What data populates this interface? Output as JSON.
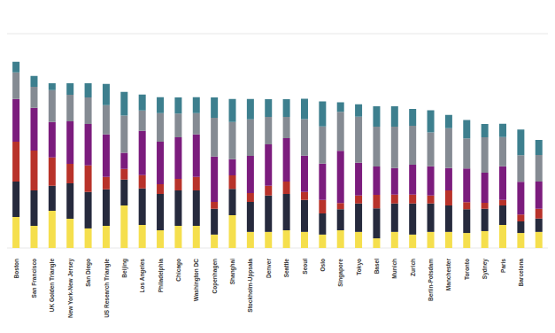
{
  "chart_data": {
    "type": "bar",
    "stacked": true,
    "grid": true,
    "tick_labels": "x",
    "categories": [
      "Boston",
      "San Francisco",
      "UK Golden Triangle",
      "New York-New Jersey",
      "San Diego",
      "US Research Triangle",
      "Beijing",
      "Los Angeles",
      "Philadelphia",
      "Chicago",
      "Washington DC",
      "Copenhagen",
      "Shanghai",
      "Stockholm-Uppsala",
      "Denver",
      "Seattle",
      "Seoul",
      "Oslo",
      "Singapore",
      "Tokyo",
      "Basel",
      "Munich",
      "Zurich",
      "Berlin-Potsdam",
      "Manchester",
      "Toronto",
      "Sydney",
      "Paris",
      "Barcelona",
      null
    ],
    "ylim": [
      0,
      80
    ],
    "yticks": [
      0,
      10,
      20,
      30,
      40,
      50,
      60,
      70,
      80
    ],
    "series": [
      {
        "color": "#f5df4d",
        "values": [
          11.6,
          8.3,
          13.9,
          10.9,
          7.3,
          8.3,
          15.9,
          8.6,
          6.6,
          8.3,
          8.3,
          5.0,
          12.2,
          6.0,
          6.0,
          6.6,
          6.0,
          5.0,
          6.6,
          6.0,
          3.6,
          6.0,
          5.0,
          6.0,
          6.0,
          5.6,
          6.3,
          8.6,
          5.6,
          6.0
        ]
      },
      {
        "color": "#262a3d",
        "values": [
          13.2,
          13.2,
          9.3,
          13.2,
          13.6,
          13.6,
          9.6,
          13.6,
          13.6,
          13.2,
          13.2,
          9.6,
          9.9,
          11.2,
          13.6,
          13.6,
          11.9,
          7.9,
          7.9,
          10.6,
          11.2,
          10.6,
          11.6,
          10.6,
          9.9,
          8.9,
          8.3,
          7.3,
          4.3,
          5.0
        ]
      },
      {
        "color": "#b8322a",
        "values": [
          14.9,
          14.9,
          10.6,
          7.3,
          9.9,
          4.6,
          4.0,
          5.0,
          3.6,
          4.3,
          5.0,
          2.6,
          5.0,
          3.3,
          3.6,
          4.6,
          3.0,
          5.0,
          2.3,
          3.0,
          5.0,
          3.3,
          3.3,
          3.0,
          5.6,
          2.6,
          2.3,
          2.0,
          2.6,
          3.6
        ]
      },
      {
        "color": "#7b1c7d",
        "values": [
          15.9,
          15.9,
          13.2,
          15.9,
          15.5,
          15.9,
          6.0,
          16.5,
          15.9,
          15.5,
          15.9,
          16.9,
          6.0,
          13.9,
          15.5,
          16.2,
          13.6,
          13.6,
          19.5,
          12.2,
          10.6,
          9.9,
          11.2,
          10.9,
          8.3,
          12.6,
          11.2,
          12.6,
          12.2,
          10.2
        ]
      },
      {
        "color": "#858b93",
        "values": [
          9.9,
          7.9,
          11.9,
          9.9,
          9.9,
          10.9,
          13.9,
          7.6,
          10.6,
          8.9,
          7.9,
          14.5,
          13.9,
          13.6,
          10.2,
          7.9,
          13.6,
          13.9,
          14.5,
          17.2,
          14.9,
          15.5,
          14.5,
          12.6,
          14.9,
          11.2,
          13.2,
          10.9,
          9.9,
          9.9
        ]
      },
      {
        "color": "#3d7f8e",
        "values": [
          4.0,
          4.0,
          2.6,
          4.3,
          5.3,
          7.9,
          8.9,
          6.0,
          6.0,
          6.0,
          6.0,
          7.6,
          8.6,
          7.6,
          6.6,
          6.6,
          7.6,
          9.3,
          3.6,
          4.6,
          7.6,
          7.6,
          6.3,
          8.3,
          5.0,
          6.9,
          5.0,
          5.0,
          9.6,
          5.6
        ]
      }
    ]
  }
}
